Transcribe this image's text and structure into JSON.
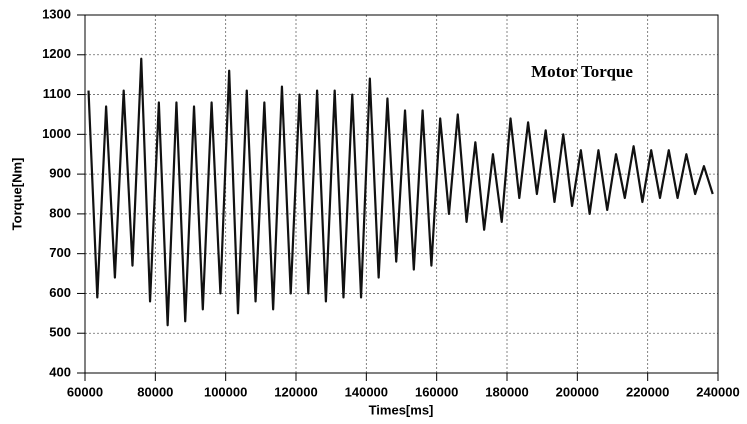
{
  "chart_data": {
    "type": "line",
    "y_label": "Torque[Nm]",
    "x_label": "Times[ms]",
    "annotation": "Motor Torque",
    "x": [
      61000,
      63500,
      66000,
      68500,
      71000,
      73500,
      76000,
      78500,
      81000,
      83500,
      86000,
      88500,
      91000,
      93500,
      96000,
      98500,
      101000,
      103500,
      106000,
      108500,
      111000,
      113500,
      116000,
      118500,
      121000,
      123500,
      126000,
      128500,
      131000,
      133500,
      136000,
      138500,
      141000,
      143500,
      146000,
      148500,
      151000,
      153500,
      156000,
      158500,
      161000,
      163500,
      166000,
      168500,
      171000,
      173500,
      176000,
      178500,
      181000,
      183500,
      186000,
      188500,
      191000,
      193500,
      196000,
      198500,
      201000,
      203500,
      206000,
      208500,
      211000,
      213500,
      216000,
      218500,
      221000,
      223500,
      226000,
      228500,
      231000,
      233500,
      236000,
      238500
    ],
    "series": [
      {
        "name": "Motor Torque",
        "color": "#111111",
        "values": [
          1110,
          590,
          1070,
          640,
          1110,
          670,
          1190,
          580,
          1080,
          520,
          1080,
          530,
          1070,
          560,
          1080,
          600,
          1160,
          550,
          1110,
          580,
          1080,
          560,
          1120,
          600,
          1100,
          600,
          1110,
          580,
          1110,
          590,
          1100,
          590,
          1140,
          640,
          1090,
          680,
          1060,
          660,
          1060,
          670,
          1040,
          800,
          1050,
          780,
          980,
          760,
          950,
          780,
          1040,
          840,
          1030,
          850,
          1010,
          830,
          1000,
          820,
          960,
          800,
          960,
          810,
          950,
          840,
          970,
          830,
          960,
          840,
          960,
          840,
          950,
          850,
          920,
          850
        ]
      }
    ],
    "xlim": [
      60000,
      240000
    ],
    "ylim": [
      400,
      1300
    ],
    "xticks": [
      60000,
      80000,
      100000,
      120000,
      140000,
      160000,
      180000,
      200000,
      220000,
      240000
    ],
    "yticks": [
      400,
      500,
      600,
      700,
      800,
      900,
      1000,
      1100,
      1200,
      1300
    ],
    "grid": true
  }
}
